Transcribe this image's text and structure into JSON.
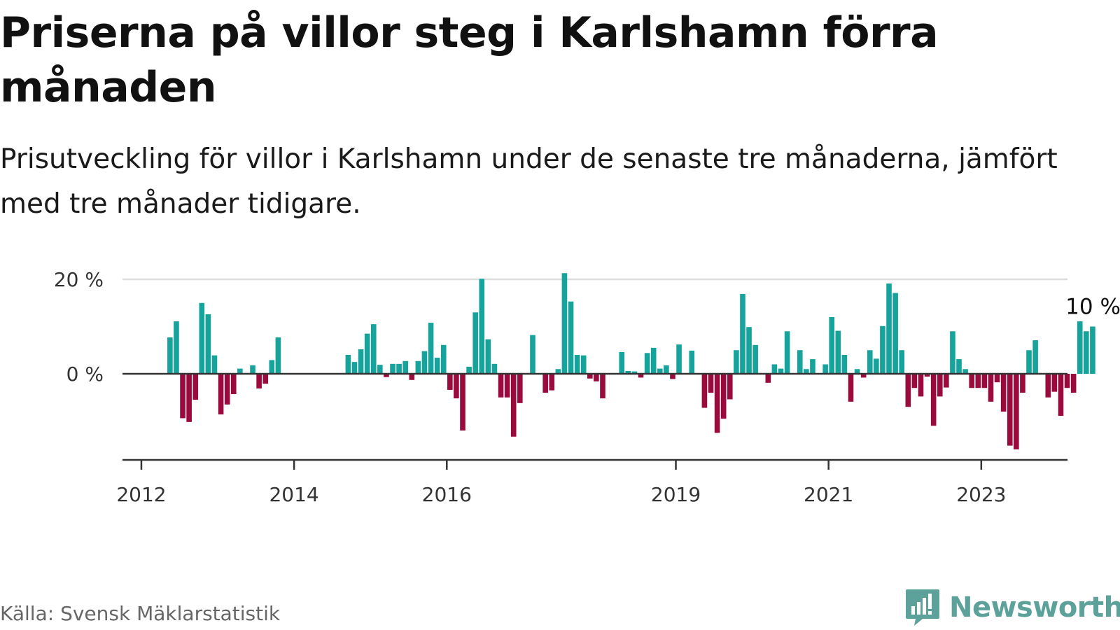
{
  "title": "Priserna på villor steg i Karlshamn förra månaden",
  "subtitle": "Prisutveckling för villor i Karlshamn under de senaste tre månaderna, jämfört med tre månader tidigare.",
  "source": "Källa: Svensk Mäklarstatistik",
  "brand": {
    "name": "Newsworthy",
    "icon": "newsworthy-logo-icon"
  },
  "colors": {
    "positive": "#16a39b",
    "negative": "#9b0a3d",
    "axis": "#333333",
    "grid": "#dddddd",
    "brand": "#5ca29b"
  },
  "chart_data": {
    "type": "bar",
    "y_unit": "%",
    "ylim": [
      -18,
      20
    ],
    "y_ticks": [
      {
        "value": 0,
        "label": "0 %"
      },
      {
        "value": 20,
        "label": "20 %"
      }
    ],
    "x_ticks": [
      {
        "year": 2012,
        "label": "2012"
      },
      {
        "year": 2014,
        "label": "2014"
      },
      {
        "year": 2016,
        "label": "2016"
      },
      {
        "year": 2019,
        "label": "2019"
      },
      {
        "year": 2021,
        "label": "2021"
      },
      {
        "year": 2023,
        "label": "2023"
      }
    ],
    "annotation": {
      "text": "10 %",
      "value": 10
    },
    "grid_y": true,
    "start": "2012-01",
    "values": [
      null,
      null,
      null,
      null,
      7.7,
      11.1,
      -9.4,
      -10.2,
      -5.5,
      15.0,
      12.6,
      3.9,
      -8.6,
      -6.5,
      -4.3,
      1.1,
      null,
      1.8,
      -3.1,
      -2.1,
      2.9,
      7.7,
      null,
      null,
      null,
      null,
      null,
      null,
      null,
      null,
      null,
      null,
      4.0,
      2.5,
      5.2,
      8.5,
      10.5,
      1.9,
      -0.7,
      2.1,
      2.1,
      2.7,
      -1.3,
      2.7,
      4.8,
      10.8,
      3.4,
      6.1,
      -3.4,
      -5.2,
      -12.0,
      1.5,
      13.0,
      20.1,
      7.3,
      2.1,
      -5.0,
      -5.0,
      -13.3,
      -6.2,
      null,
      8.2,
      null,
      -4.0,
      -3.5,
      1.0,
      21.3,
      15.3,
      4.0,
      3.9,
      -1.0,
      -1.6,
      -5.2,
      null,
      null,
      4.6,
      0.6,
      0.5,
      -0.8,
      4.4,
      5.5,
      1.1,
      1.8,
      -1.1,
      6.2,
      null,
      4.9,
      null,
      -7.2,
      -4.0,
      -12.5,
      -9.5,
      -5.4,
      5.0,
      16.9,
      9.9,
      6.1,
      null,
      -1.9,
      2.0,
      1.1,
      9.0,
      null,
      5.0,
      1.0,
      3.1,
      null,
      2.0,
      12.0,
      9.1,
      4.0,
      -5.9,
      1.0,
      -0.8,
      5.0,
      3.2,
      10.1,
      19.1,
      17.1,
      5.0,
      -7.0,
      -3.0,
      -4.8,
      -0.6,
      -11.0,
      -4.8,
      -2.9,
      9.0,
      3.1,
      1.0,
      -3.0,
      -3.0,
      -3.0,
      -5.9,
      -1.8,
      -8.0,
      -15.2,
      -16.0,
      -4.0,
      5.0,
      7.1,
      null,
      -5.0,
      -3.8,
      -8.9,
      -3.0,
      -4.0,
      11.1,
      9.0,
      10.0
    ]
  }
}
